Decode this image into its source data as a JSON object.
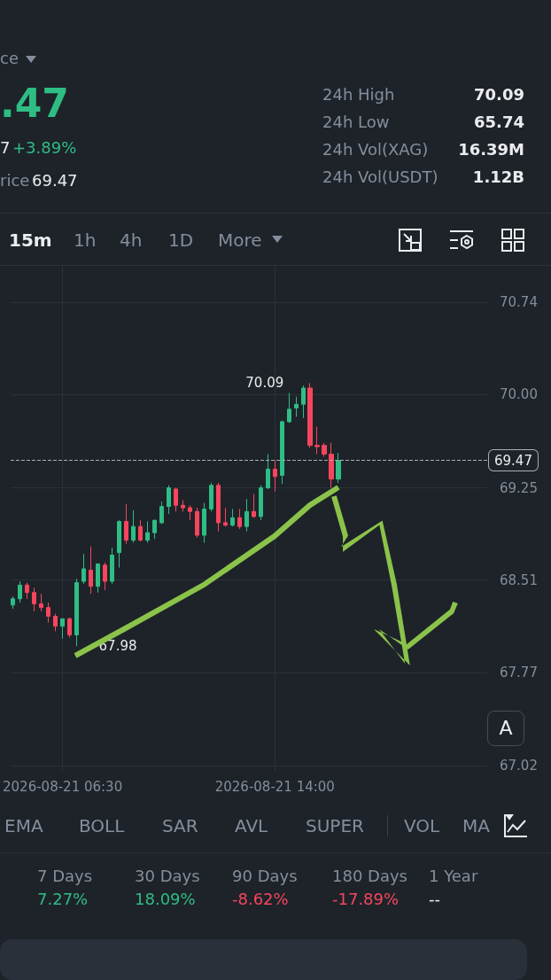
{
  "chart_data": [
    {
      "type": "other",
      "annotations": [
        "ce",
        ".47",
        "7",
        "+3.89%",
        "rice",
        "69.47",
        "24h High",
        "70.09",
        "24h Low",
        "65.74",
        "24h Vol(XAG)",
        "16.39M",
        "24h Vol(USDT)",
        "1.12B",
        "15m",
        "1h",
        "4h",
        "1D",
        "More"
      ]
    },
    {
      "type": "candlestick",
      "x": [
        "2026-08-21T04:45",
        "2026-08-21T05:00",
        "2026-08-21T05:15",
        "2026-08-21T05:30",
        "2026-08-21T05:45",
        "2026-08-21T06:00",
        "2026-08-21T06:15",
        "2026-08-21T06:30",
        "2026-08-21T06:45",
        "2026-08-21T07:00",
        "2026-08-21T07:15",
        "2026-08-21T07:30",
        "2026-08-21T07:45",
        "2026-08-21T08:00",
        "2026-08-21T08:15",
        "2026-08-21T08:30",
        "2026-08-21T08:45",
        "2026-08-21T09:00",
        "2026-08-21T09:15",
        "2026-08-21T09:30",
        "2026-08-21T09:45",
        "2026-08-21T10:00",
        "2026-08-21T10:15",
        "2026-08-21T10:30",
        "2026-08-21T10:45",
        "2026-08-21T11:00",
        "2026-08-21T11:15",
        "2026-08-21T11:30",
        "2026-08-21T11:45",
        "2026-08-21T12:00",
        "2026-08-21T12:15",
        "2026-08-21T12:30",
        "2026-08-21T12:45",
        "2026-08-21T13:00",
        "2026-08-21T13:15",
        "2026-08-21T13:30",
        "2026-08-21T13:45",
        "2026-08-21T14:00",
        "2026-08-21T14:15",
        "2026-08-21T14:30",
        "2026-08-21T14:45",
        "2026-08-21T15:00",
        "2026-08-21T15:15",
        "2026-08-21T15:30",
        "2026-08-21T15:45",
        "2026-08-21T16:00",
        "2026-08-21T16:15"
      ],
      "ohlc": [
        [
          68.31,
          68.38,
          68.28,
          68.36
        ],
        [
          68.36,
          68.5,
          68.33,
          68.47
        ],
        [
          68.47,
          68.49,
          68.36,
          68.41
        ],
        [
          68.41,
          68.45,
          68.26,
          68.32
        ],
        [
          68.32,
          68.4,
          68.26,
          68.29
        ],
        [
          68.29,
          68.33,
          68.17,
          68.22
        ],
        [
          68.22,
          68.24,
          68.1,
          68.14
        ],
        [
          68.14,
          68.2,
          68.04,
          68.2
        ],
        [
          68.2,
          68.21,
          68.05,
          68.07
        ],
        [
          68.07,
          68.52,
          67.98,
          68.49
        ],
        [
          68.5,
          68.72,
          68.48,
          68.6
        ],
        [
          68.59,
          68.78,
          68.4,
          68.46
        ],
        [
          68.46,
          68.64,
          68.41,
          68.64
        ],
        [
          68.63,
          68.65,
          68.43,
          68.5
        ],
        [
          68.5,
          68.77,
          68.48,
          68.71
        ],
        [
          68.73,
          68.99,
          68.61,
          68.98
        ],
        [
          68.98,
          69.12,
          68.8,
          68.83
        ],
        [
          68.83,
          69.07,
          68.81,
          68.94
        ],
        [
          68.94,
          68.99,
          68.82,
          68.83
        ],
        [
          68.83,
          68.98,
          68.81,
          68.89
        ],
        [
          68.89,
          68.99,
          68.84,
          68.99
        ],
        [
          68.97,
          69.14,
          68.96,
          69.1
        ],
        [
          69.1,
          69.27,
          69.04,
          69.25
        ],
        [
          69.24,
          69.25,
          69.06,
          69.11
        ],
        [
          69.11,
          69.15,
          69.06,
          69.09
        ],
        [
          69.09,
          69.11,
          68.99,
          69.06
        ],
        [
          69.06,
          69.09,
          68.85,
          68.87
        ],
        [
          68.87,
          69.13,
          68.81,
          69.08
        ],
        [
          69.08,
          69.29,
          69.06,
          69.27
        ],
        [
          69.27,
          69.29,
          68.9,
          68.97
        ],
        [
          68.97,
          69.09,
          68.94,
          68.95
        ],
        [
          68.95,
          69.08,
          68.94,
          69.01
        ],
        [
          69.01,
          69.08,
          68.92,
          68.94
        ],
        [
          68.94,
          69.16,
          68.9,
          69.06
        ],
        [
          69.06,
          69.2,
          69.01,
          69.02
        ],
        [
          69.02,
          69.27,
          68.99,
          69.25
        ],
        [
          69.25,
          69.52,
          69.24,
          69.4
        ],
        [
          69.4,
          69.47,
          69.22,
          69.34
        ],
        [
          69.35,
          69.79,
          69.28,
          69.78
        ],
        [
          69.78,
          70.01,
          69.77,
          69.88
        ],
        [
          69.89,
          69.98,
          69.82,
          69.92
        ],
        [
          69.92,
          70.07,
          69.81,
          70.05
        ],
        [
          70.05,
          70.09,
          69.57,
          69.59
        ],
        [
          69.59,
          69.74,
          69.52,
          69.58
        ],
        [
          69.59,
          69.61,
          69.5,
          69.52
        ],
        [
          69.52,
          69.61,
          69.25,
          69.32
        ],
        [
          69.32,
          69.53,
          69.29,
          69.47
        ]
      ],
      "xlim": [
        "2026-08-21T04:40",
        "2026-08-21T21:30"
      ],
      "xticks": [
        {
          "value": "2026-08-21T06:30",
          "label": "2026-08-21 06:30"
        },
        {
          "value": "2026-08-21T14:00",
          "label": "2026-08-21 14:00"
        }
      ],
      "ylim": [
        66.98,
        71.03
      ],
      "yticks": [
        67.02,
        67.77,
        68.51,
        69.25,
        {
          "value": 70,
          "label": "70.00"
        },
        70.74
      ],
      "grid": true,
      "ref_lines": [
        {
          "axis": "y",
          "value": 69.47,
          "label": "69.47",
          "line_style": "dashed"
        }
      ],
      "annotations": [
        {
          "text": "70.09",
          "x": "2026-08-21T15:15",
          "y": 70.09
        },
        {
          "text": "67.98",
          "x": "2026-08-21T07:00",
          "y": 67.98
        },
        "A"
      ]
    },
    {
      "type": "other",
      "annotations": [
        "EMA",
        "BOLL",
        "SAR",
        "AVL",
        "SUPER",
        "VOL",
        "MA",
        "7 Days",
        "7.27%",
        "30 Days",
        "18.09%",
        "90 Days",
        "-8.62%",
        "180 Days",
        "-17.89%",
        "1 Year",
        "--"
      ]
    }
  ]
}
